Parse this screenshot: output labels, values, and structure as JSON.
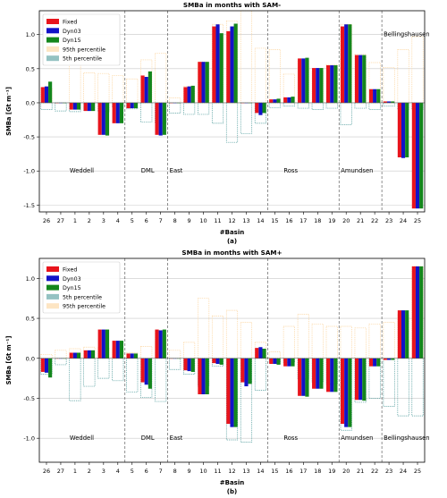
{
  "chart_data": [
    {
      "type": "bar",
      "title": "SMBa in months with SAM-",
      "xlabel": "#Basin",
      "ylabel": "SMBa [Gt m⁻¹]",
      "caption": "(a)",
      "categories": [
        "26",
        "27",
        "1",
        "2",
        "3",
        "4",
        "5",
        "6",
        "7",
        "8",
        "9",
        "10",
        "11",
        "12",
        "13",
        "14",
        "15",
        "16",
        "17",
        "18",
        "19",
        "20",
        "21",
        "22",
        "23",
        "24",
        "25"
      ],
      "ylim": [
        -1.6,
        1.35
      ],
      "yticks": [
        -1.5,
        -1.0,
        -0.5,
        0.0,
        0.5,
        1.0
      ],
      "grid": true,
      "legend_position": "top-left",
      "series": [
        {
          "name": "Fixed",
          "color": "#e8141c",
          "values": [
            0.23,
            0.0,
            -0.1,
            -0.12,
            -0.47,
            -0.3,
            -0.08,
            0.4,
            -0.47,
            0.0,
            0.23,
            0.6,
            1.12,
            1.05,
            0.0,
            -0.15,
            0.05,
            0.08,
            0.65,
            0.51,
            0.55,
            1.12,
            0.7,
            0.2,
            0.02,
            -0.8,
            -1.55
          ]
        },
        {
          "name": "Dyn03",
          "color": "#1212c8",
          "values": [
            0.24,
            0.0,
            -0.1,
            -0.12,
            -0.47,
            -0.3,
            -0.08,
            0.38,
            -0.48,
            0.0,
            0.24,
            0.6,
            1.15,
            1.12,
            0.0,
            -0.18,
            0.05,
            0.08,
            0.65,
            0.51,
            0.55,
            1.15,
            0.7,
            0.2,
            0.02,
            -0.81,
            -1.55
          ]
        },
        {
          "name": "Dyn15",
          "color": "#13861c",
          "values": [
            0.31,
            0.0,
            -0.1,
            -0.12,
            -0.48,
            -0.3,
            -0.08,
            0.46,
            -0.47,
            0.0,
            0.25,
            0.6,
            1.02,
            1.16,
            0.0,
            -0.15,
            0.06,
            0.09,
            0.66,
            0.51,
            0.55,
            1.15,
            0.7,
            0.2,
            0.02,
            -0.8,
            -1.55
          ]
        }
      ],
      "percentile_95": [
        0.22,
        0.0,
        0.74,
        0.44,
        0.43,
        0.4,
        0.35,
        0.63,
        0.73,
        0.07,
        0.24,
        0.6,
        1.15,
        1.2,
        1.35,
        0.8,
        0.78,
        0.42,
        0.63,
        0.47,
        0.56,
        1.15,
        0.71,
        0.59,
        0.52,
        0.78,
        0.97
      ],
      "percentile_5": [
        -0.1,
        -0.12,
        -0.13,
        -0.11,
        -0.13,
        -0.07,
        -0.09,
        -0.28,
        -0.3,
        -0.15,
        -0.17,
        -0.17,
        -0.3,
        -0.58,
        -0.45,
        -0.3,
        -0.07,
        -0.05,
        -0.08,
        -0.1,
        -0.08,
        -0.32,
        -0.08,
        -0.1,
        -0.05,
        -0.1,
        -0.1
      ],
      "region_labels": [
        {
          "label": "Weddell",
          "x": "1",
          "y": -1.0
        },
        {
          "label": "DML",
          "x": "6",
          "y": -1.0
        },
        {
          "label": "East",
          "x": "8",
          "y": -1.0
        },
        {
          "label": "Ross",
          "x": "16",
          "y": -1.0
        },
        {
          "label": "Amundsen",
          "x": "20",
          "y": -1.0
        },
        {
          "label": "Bellingshausen",
          "x": "23",
          "y": 1.0
        }
      ],
      "region_dividers_after": [
        "4",
        "7",
        "14",
        "19",
        "22"
      ]
    },
    {
      "type": "bar",
      "title": "SMBa in months with SAM+",
      "xlabel": "#Basin",
      "ylabel": "SMBa [Gt m⁻¹]",
      "caption": "(b)",
      "categories": [
        "26",
        "27",
        "1",
        "2",
        "3",
        "4",
        "5",
        "6",
        "7",
        "8",
        "9",
        "10",
        "11",
        "12",
        "13",
        "14",
        "15",
        "16",
        "17",
        "18",
        "19",
        "20",
        "21",
        "22",
        "23",
        "24",
        "25"
      ],
      "ylim": [
        -1.3,
        1.25
      ],
      "yticks": [
        -1.0,
        -0.5,
        0.0,
        0.5,
        1.0
      ],
      "grid": true,
      "legend_position": "top-left",
      "series": [
        {
          "name": "Fixed",
          "color": "#e8141c",
          "values": [
            -0.17,
            0.0,
            0.07,
            0.1,
            0.36,
            0.22,
            0.06,
            -0.3,
            0.36,
            0.0,
            -0.15,
            -0.45,
            -0.06,
            -0.82,
            -0.3,
            0.13,
            -0.07,
            -0.1,
            -0.47,
            -0.38,
            -0.42,
            -0.82,
            -0.52,
            -0.1,
            -0.02,
            0.6,
            1.15
          ]
        },
        {
          "name": "Dyn03",
          "color": "#1212c8",
          "values": [
            -0.18,
            0.0,
            0.07,
            0.1,
            0.36,
            0.22,
            0.06,
            -0.33,
            0.35,
            0.0,
            -0.16,
            -0.45,
            -0.07,
            -0.86,
            -0.35,
            0.14,
            -0.07,
            -0.1,
            -0.47,
            -0.38,
            -0.42,
            -0.86,
            -0.52,
            -0.1,
            -0.02,
            0.6,
            1.15
          ]
        },
        {
          "name": "Dyn15",
          "color": "#13861c",
          "values": [
            -0.24,
            0.0,
            0.07,
            0.1,
            0.36,
            0.22,
            0.06,
            -0.38,
            0.36,
            0.0,
            -0.17,
            -0.45,
            -0.08,
            -0.86,
            -0.32,
            0.12,
            -0.08,
            -0.1,
            -0.48,
            -0.38,
            -0.42,
            -0.86,
            -0.53,
            -0.1,
            -0.02,
            0.6,
            1.15
          ]
        }
      ],
      "percentile_95": [
        0.05,
        0.1,
        0.12,
        0.14,
        0.14,
        0.12,
        0.07,
        0.15,
        0.35,
        0.1,
        0.2,
        0.75,
        0.53,
        0.6,
        0.45,
        0.2,
        0.08,
        0.4,
        0.55,
        0.43,
        0.4,
        0.4,
        0.38,
        0.43,
        0.45,
        0.55,
        1.15
      ],
      "percentile_5": [
        -0.2,
        -0.08,
        -0.53,
        -0.35,
        -0.25,
        -0.28,
        -0.42,
        -0.49,
        -0.54,
        -0.14,
        -0.2,
        -0.35,
        -0.1,
        -1.02,
        -1.05,
        -0.4,
        -0.06,
        -0.05,
        -0.26,
        -0.3,
        -0.32,
        -0.9,
        -0.55,
        -0.5,
        -0.6,
        -0.72,
        -0.72
      ],
      "region_labels": [
        {
          "label": "Weddell",
          "x": "1",
          "y": -1.0
        },
        {
          "label": "DML",
          "x": "6",
          "y": -1.0
        },
        {
          "label": "East",
          "x": "8",
          "y": -1.0
        },
        {
          "label": "Ross",
          "x": "16",
          "y": -1.0
        },
        {
          "label": "Amundsen",
          "x": "20",
          "y": -1.0
        },
        {
          "label": "Bellingshausen",
          "x": "23",
          "y": -1.0
        }
      ],
      "region_dividers_after": [
        "4",
        "7",
        "14",
        "19",
        "22"
      ]
    }
  ],
  "legend_labels": {
    "p95": "95th percentile",
    "p5": "5th percentile"
  },
  "colors": {
    "p95": "#fcd39b",
    "p5": "#4d9a9a",
    "grid": "#c8c8c8"
  }
}
